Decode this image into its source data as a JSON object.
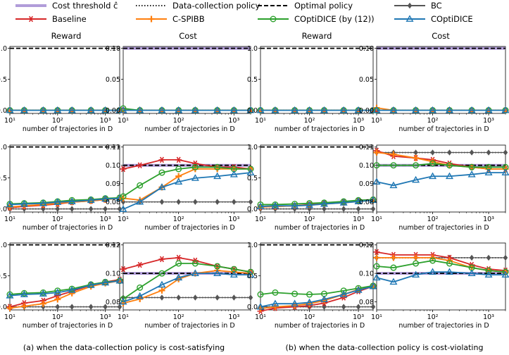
{
  "chart_data": {
    "type": "line",
    "legend": [
      {
        "key": "threshold",
        "label": "Cost threshold ĉ",
        "color": "#b19cd9",
        "style": "thick"
      },
      {
        "key": "datapolicy",
        "label": "Data-collection policy",
        "color": "#000000",
        "style": "dotted"
      },
      {
        "key": "optimal",
        "label": "Optimal policy",
        "color": "#000000",
        "style": "dashed"
      },
      {
        "key": "bc",
        "label": "BC",
        "color": "#555555",
        "marker": "diamond"
      },
      {
        "key": "baseline",
        "label": "Baseline",
        "color": "#d62728",
        "marker": "star"
      },
      {
        "key": "cspibb",
        "label": "C-SPIBB",
        "color": "#ff7f0e",
        "marker": "plus"
      },
      {
        "key": "coptidice12",
        "label": "COptiDICE (by (12))",
        "color": "#2ca02c",
        "marker": "circle"
      },
      {
        "key": "coptidice",
        "label": "COptiDICE",
        "color": "#1f77b4",
        "marker": "triangle"
      }
    ],
    "x": [
      10,
      20,
      50,
      100,
      200,
      500,
      1000,
      2000
    ],
    "xlabel": "number of trajectories in D",
    "xscale": "log",
    "column_titles": [
      "Reward",
      "Cost",
      "Reward",
      "Cost"
    ],
    "captions": [
      "(a) when the data-collection policy is cost-satisfying",
      "(b) when the data-collection policy is cost-violating"
    ],
    "panels": [
      {
        "ylim": [
          0,
          1.0
        ],
        "yticks": [
          "0.0",
          "0.5",
          "1.0"
        ],
        "ref": {
          "optimal": 1.0,
          "datapolicy": 0.0
        },
        "series": {
          "bc": [
            0,
            0,
            0,
            0,
            0,
            0,
            0,
            0
          ],
          "baseline": [
            0,
            0,
            0,
            0,
            0,
            0,
            0,
            0
          ],
          "cspibb": [
            0,
            0,
            0,
            0,
            0,
            0,
            0,
            0
          ],
          "coptidice12": [
            0,
            0,
            0,
            0,
            0,
            0,
            0,
            0
          ],
          "coptidice": [
            0,
            0,
            0,
            0,
            0,
            0,
            0,
            0
          ]
        }
      },
      {
        "ylim": [
          0,
          0.1
        ],
        "yticks": [
          "0.00",
          "0.05",
          "0.10"
        ],
        "ref": {
          "threshold": 0.1,
          "optimal": 0.1,
          "datapolicy": 0.0
        },
        "series": {
          "bc": [
            0,
            0,
            0,
            0,
            0,
            0,
            0,
            0
          ],
          "baseline": [
            0,
            0,
            0,
            0,
            0,
            0,
            0,
            0
          ],
          "cspibb": [
            0,
            0,
            0,
            0,
            0,
            0,
            0,
            0
          ],
          "coptidice12": [
            0.003,
            0,
            0,
            0,
            0,
            0,
            0,
            0
          ],
          "coptidice": [
            0,
            0,
            0,
            0,
            0,
            0,
            0,
            0
          ]
        }
      },
      {
        "ylim": [
          0,
          1.0
        ],
        "yticks": [
          "0.0",
          "0.5",
          "1.0"
        ],
        "ref": {
          "optimal": 1.0,
          "datapolicy": 0.0
        },
        "series": {
          "bc": [
            0,
            0,
            0,
            0,
            0,
            0,
            0,
            0
          ],
          "baseline": [
            0,
            0,
            0,
            0,
            0,
            0,
            0,
            0
          ],
          "cspibb": [
            0,
            0,
            0,
            0,
            0,
            0,
            0,
            0
          ],
          "coptidice12": [
            0,
            0,
            0,
            0,
            0,
            0,
            0,
            0
          ],
          "coptidice": [
            0,
            0,
            0,
            0,
            0,
            0,
            0,
            0
          ]
        }
      },
      {
        "ylim": [
          0,
          0.1
        ],
        "yticks": [
          "0.00",
          "0.05",
          "0.10"
        ],
        "ref": {
          "threshold": 0.1,
          "optimal": 0.1,
          "datapolicy": 0.0
        },
        "series": {
          "bc": [
            0,
            0,
            0,
            0,
            0,
            0,
            0,
            0
          ],
          "baseline": [
            0,
            0,
            0,
            0,
            0,
            0,
            0,
            0
          ],
          "cspibb": [
            0.004,
            0,
            0,
            0,
            0,
            0,
            0,
            0
          ],
          "coptidice12": [
            0,
            0,
            0,
            0,
            0,
            0,
            0,
            0
          ],
          "coptidice": [
            0,
            0,
            0,
            0,
            0,
            0,
            0,
            0
          ]
        }
      },
      {
        "ylim": [
          0,
          1.0
        ],
        "yticks": [
          "0.0",
          "0.5",
          "1.0"
        ],
        "ref": {
          "optimal": 1.0,
          "datapolicy": 0.0
        },
        "series": {
          "bc": [
            0,
            0,
            0,
            0,
            0,
            0,
            0,
            0
          ],
          "baseline": [
            0.02,
            0.04,
            0.06,
            0.08,
            0.11,
            0.13,
            0.15,
            0.18
          ],
          "cspibb": [
            0.03,
            0.05,
            0.07,
            0.09,
            0.11,
            0.13,
            0.15,
            0.17
          ],
          "coptidice12": [
            0.08,
            0.09,
            0.1,
            0.12,
            0.14,
            0.15,
            0.17,
            0.18
          ],
          "coptidice": [
            0.07,
            0.08,
            0.09,
            0.11,
            0.12,
            0.14,
            0.16,
            0.17
          ]
        }
      },
      {
        "ylim": [
          0.075,
          0.11
        ],
        "yticks": [
          "0.08",
          "0.09",
          "0.10",
          "0.11"
        ],
        "ref": {
          "threshold": 0.1,
          "optimal": 0.1,
          "datapolicy": 0.08
        },
        "series": {
          "bc": [
            0.08,
            0.08,
            0.08,
            0.08,
            0.08,
            0.08,
            0.08,
            0.08
          ],
          "baseline": [
            0.098,
            0.1,
            0.103,
            0.103,
            0.101,
            0.099,
            0.099,
            0.098
          ],
          "cspibb": [
            0.082,
            0.081,
            0.088,
            0.094,
            0.098,
            0.098,
            0.098,
            0.098
          ],
          "coptidice12": [
            0.083,
            0.089,
            0.096,
            0.098,
            0.099,
            0.099,
            0.098,
            0.098
          ],
          "coptidice": [
            0.076,
            0.08,
            0.088,
            0.091,
            0.093,
            0.094,
            0.095,
            0.096
          ]
        }
      },
      {
        "ylim": [
          0,
          1.0
        ],
        "yticks": [
          "0.0",
          "0.5",
          "1.0"
        ],
        "ref": {
          "optimal": 1.0,
          "datapolicy": 0.0
        },
        "series": {
          "bc": [
            0,
            0,
            0,
            0,
            0,
            0,
            0,
            0
          ],
          "baseline": [
            0.03,
            0.04,
            0.05,
            0.07,
            0.09,
            0.11,
            0.13,
            0.15
          ],
          "cspibb": [
            0.03,
            0.04,
            0.05,
            0.06,
            0.08,
            0.1,
            0.12,
            0.14
          ],
          "coptidice12": [
            0.07,
            0.07,
            0.08,
            0.09,
            0.1,
            0.12,
            0.14,
            0.15
          ],
          "coptidice": [
            0.04,
            0.05,
            0.05,
            0.06,
            0.08,
            0.1,
            0.12,
            0.14
          ]
        }
      },
      {
        "ylim": [
          0.075,
          0.11
        ],
        "yticks": [
          "0.08",
          "0.09",
          "0.10",
          "0.11"
        ],
        "ref": {
          "threshold": 0.1,
          "optimal": 0.1,
          "datapolicy": 0.107
        },
        "series": {
          "bc": [
            0.107,
            0.107,
            0.107,
            0.107,
            0.107,
            0.107,
            0.107,
            0.107
          ],
          "baseline": [
            0.108,
            0.105,
            0.104,
            0.103,
            0.101,
            0.099,
            0.098,
            0.098
          ],
          "cspibb": [
            0.107,
            0.106,
            0.104,
            0.102,
            0.1,
            0.099,
            0.098,
            0.098
          ],
          "coptidice12": [
            0.1,
            0.1,
            0.1,
            0.101,
            0.1,
            0.099,
            0.099,
            0.099
          ],
          "coptidice": [
            0.091,
            0.089,
            0.092,
            0.094,
            0.094,
            0.095,
            0.096,
            0.096
          ]
        }
      },
      {
        "ylim": [
          0,
          1.0
        ],
        "yticks": [
          "0.0",
          "0.5",
          "1.0"
        ],
        "ref": {
          "optimal": 1.0,
          "datapolicy": 0.0
        },
        "series": {
          "bc": [
            0,
            0,
            0,
            0,
            0,
            0,
            0,
            0
          ],
          "baseline": [
            0.0,
            0.06,
            0.1,
            0.18,
            0.25,
            0.35,
            0.4,
            0.44
          ],
          "cspibb": [
            -0.02,
            0.01,
            0.05,
            0.12,
            0.22,
            0.33,
            0.38,
            0.42
          ],
          "coptidice12": [
            0.2,
            0.22,
            0.23,
            0.26,
            0.29,
            0.36,
            0.4,
            0.42
          ],
          "coptidice": [
            0.18,
            0.2,
            0.21,
            0.23,
            0.27,
            0.35,
            0.39,
            0.42
          ]
        }
      },
      {
        "ylim": [
          0.075,
          0.12
        ],
        "yticks": [
          "0.08",
          "0.10",
          "0.12"
        ],
        "ref": {
          "threshold": 0.1,
          "optimal": 0.1,
          "datapolicy": 0.083
        },
        "series": {
          "bc": [
            0.083,
            0.083,
            0.083,
            0.083,
            0.083,
            0.083,
            0.083,
            0.083
          ],
          "baseline": [
            0.103,
            0.106,
            0.11,
            0.111,
            0.109,
            0.105,
            0.103,
            0.101
          ],
          "cspibb": [
            0.079,
            0.082,
            0.088,
            0.096,
            0.1,
            0.102,
            0.101,
            0.1
          ],
          "coptidice12": [
            0.082,
            0.09,
            0.1,
            0.107,
            0.107,
            0.105,
            0.103,
            0.101
          ],
          "coptidice": [
            0.08,
            0.084,
            0.092,
            0.097,
            0.1,
            0.1,
            0.099,
            0.099
          ]
        }
      },
      {
        "ylim": [
          0,
          1.0
        ],
        "yticks": [
          "0.0",
          "0.5",
          "1.0"
        ],
        "ref": {
          "optimal": 1.0,
          "datapolicy": 0.0
        },
        "series": {
          "bc": [
            0,
            0,
            0,
            0,
            0,
            0,
            0,
            0
          ],
          "baseline": [
            -0.07,
            -0.02,
            0.0,
            0.02,
            0.06,
            0.15,
            0.25,
            0.33
          ],
          "cspibb": [
            -0.03,
            0.0,
            0.02,
            0.05,
            0.1,
            0.2,
            0.28,
            0.34
          ],
          "coptidice12": [
            0.2,
            0.23,
            0.21,
            0.2,
            0.21,
            0.26,
            0.3,
            0.34
          ],
          "coptidice": [
            0.0,
            0.05,
            0.05,
            0.07,
            0.12,
            0.2,
            0.27,
            0.33
          ]
        }
      },
      {
        "ylim": [
          0.075,
          0.12
        ],
        "yticks": [
          "0.08",
          "0.10",
          "0.12"
        ],
        "ref": {
          "threshold": 0.1,
          "optimal": 0.1,
          "datapolicy": 0.111
        },
        "series": {
          "bc": [
            0.111,
            0.111,
            0.111,
            0.111,
            0.111,
            0.111,
            0.111,
            0.111
          ],
          "baseline": [
            0.115,
            0.113,
            0.113,
            0.113,
            0.111,
            0.106,
            0.103,
            0.102
          ],
          "cspibb": [
            0.111,
            0.111,
            0.111,
            0.111,
            0.109,
            0.104,
            0.102,
            0.101
          ],
          "coptidice12": [
            0.105,
            0.104,
            0.107,
            0.109,
            0.107,
            0.104,
            0.102,
            0.101
          ],
          "coptidice": [
            0.097,
            0.094,
            0.099,
            0.101,
            0.101,
            0.1,
            0.099,
            0.099
          ]
        }
      }
    ]
  }
}
